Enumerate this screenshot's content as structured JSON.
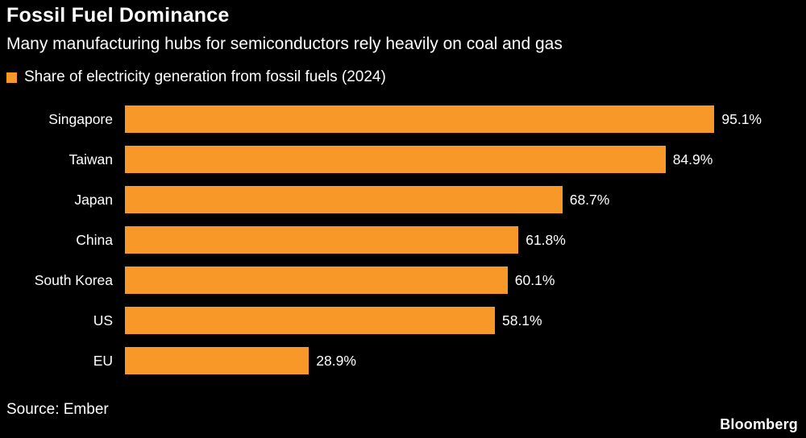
{
  "header": {
    "title": "Fossil Fuel Dominance",
    "subtitle": "Many manufacturing hubs for semiconductors rely heavily on coal and gas"
  },
  "legend": {
    "label": "Share of electricity generation from fossil fuels (2024)",
    "swatch_color": "#F89829"
  },
  "chart_data": {
    "type": "bar",
    "orientation": "horizontal",
    "title": "Share of electricity generation from fossil fuels (2024)",
    "categories": [
      "Singapore",
      "Taiwan",
      "Japan",
      "China",
      "South Korea",
      "US",
      "EU"
    ],
    "values": [
      95.1,
      84.9,
      68.7,
      61.8,
      60.1,
      58.1,
      28.9
    ],
    "value_labels": [
      "95.1%",
      "84.9%",
      "68.7%",
      "61.8%",
      "60.1%",
      "58.1%",
      "28.9%"
    ],
    "xlim": [
      0,
      100
    ],
    "grid": false,
    "bar_color": "#F89829",
    "background_color": "#000000",
    "text_color": "#FFFFFF"
  },
  "footer": {
    "source": "Source: Ember",
    "brand": "Bloomberg"
  }
}
